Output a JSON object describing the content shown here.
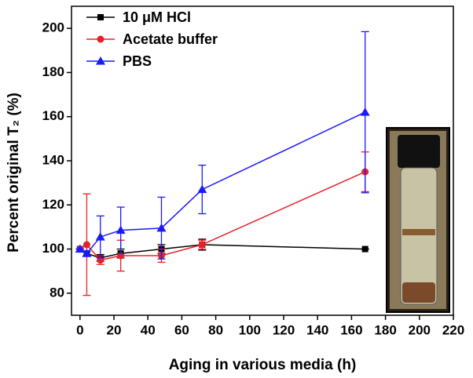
{
  "chart_data": {
    "type": "line",
    "xlabel": "Aging in various media (h)",
    "ylabel": "Percent original T₂ (%)",
    "x": [
      0,
      4,
      12,
      24,
      48,
      72,
      168
    ],
    "series": [
      {
        "name": "10 μM HCl",
        "color": "#000000",
        "marker": "square",
        "values": [
          100,
          98,
          96,
          98,
          100,
          102,
          100
        ],
        "errors": [
          0,
          1,
          1.5,
          2,
          2,
          2.5,
          0
        ]
      },
      {
        "name": "Acetate buffer",
        "color": "#e8202a",
        "marker": "circle",
        "values": [
          100,
          102,
          95,
          97,
          97,
          102,
          135
        ],
        "errors": [
          0,
          23,
          2,
          7,
          3,
          2,
          9
        ]
      },
      {
        "name": "PBS",
        "color": "#1a1aff",
        "marker": "triangle",
        "values": [
          100,
          98,
          105.5,
          108.5,
          109.5,
          127,
          162
        ],
        "errors": [
          0,
          1,
          9.5,
          10.5,
          14,
          11,
          36.5
        ]
      }
    ],
    "xlim": [
      -5,
      220
    ],
    "xticks": [
      0,
      20,
      40,
      60,
      80,
      100,
      120,
      140,
      160,
      180,
      200,
      220
    ],
    "ylim": [
      70,
      210
    ],
    "yticks": [
      80,
      100,
      120,
      140,
      160,
      180,
      200
    ],
    "legend": "upper left"
  }
}
